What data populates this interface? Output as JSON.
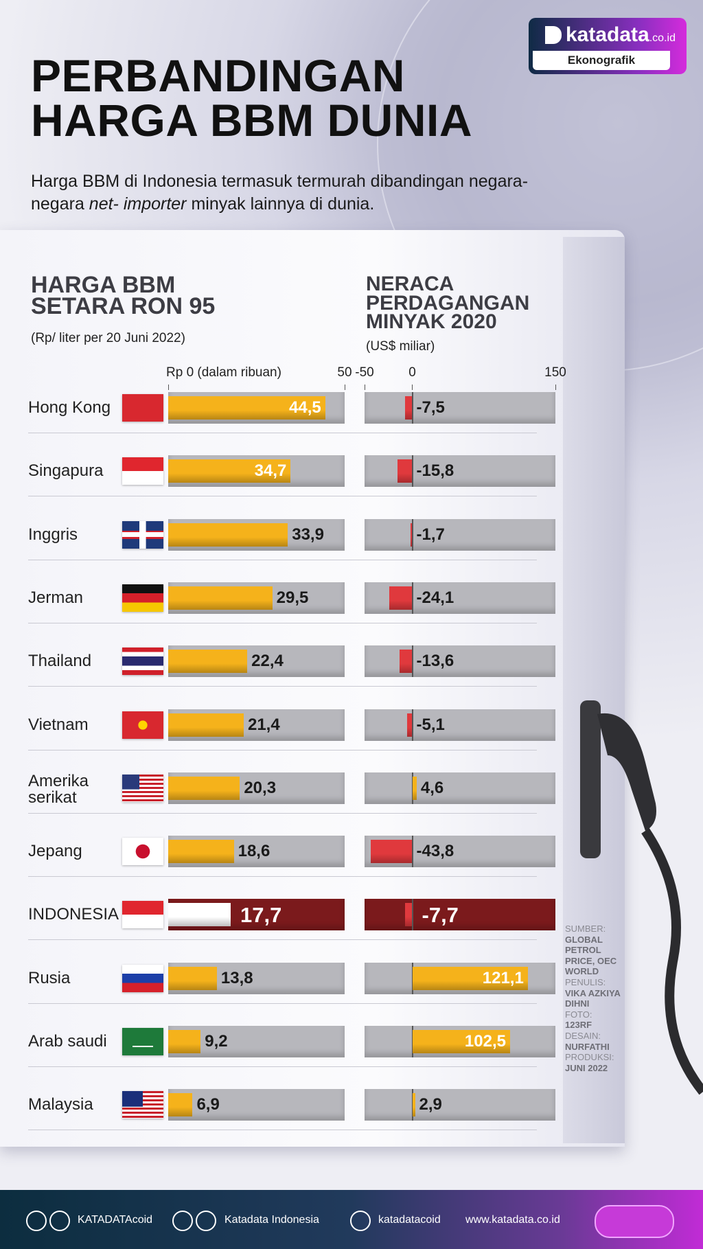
{
  "header": {
    "title": "PERBANDINGAN HARGA BBM DUNIA",
    "subtitle": [
      "Harga BBM di Indonesia termasuk termurah dibandingan negara-negara ",
      "net- importer",
      " minyak lainnya di dunia."
    ]
  },
  "logo": {
    "name": "katadata",
    "domain": ".co.id",
    "tag": "Ekonografik"
  },
  "chart_data": [
    {
      "type": "hbar",
      "title": "HARGA BBM SETARA RON 95",
      "subtitle": "(Rp/ liter per 20 Juni 2022)",
      "categories": [
        "Hong Kong",
        "Singapura",
        "Inggris",
        "Jerman",
        "Thailand",
        "Vietnam",
        "Amerika serikat",
        "Jepang",
        "INDONESIA",
        "Rusia",
        "Arab saudi",
        "Malaysia"
      ],
      "values": [
        44.5,
        34.7,
        33.9,
        29.5,
        22.4,
        21.4,
        20.3,
        18.6,
        17.7,
        13.8,
        9.2,
        6.9
      ],
      "value_labels": [
        "44,5",
        "34,7",
        "33,9",
        "29,5",
        "22,4",
        "21,4",
        "20,3",
        "18,6",
        "17,7",
        "13,8",
        "9,2",
        "6,9"
      ],
      "colors": [
        "#f5b21b",
        "#f5b21b",
        "#f5b21b",
        "#f5b21b",
        "#f5b21b",
        "#f5b21b",
        "#f5b21b",
        "#f5b21b",
        "#ffffff",
        "#f5b21b",
        "#f5b21b",
        "#f5b21b"
      ],
      "track_colors": [
        "#b7b7bc",
        "#b7b7bc",
        "#b7b7bc",
        "#b7b7bc",
        "#b7b7bc",
        "#b7b7bc",
        "#b7b7bc",
        "#b7b7bc",
        "#7b1a1c",
        "#b7b7bc",
        "#b7b7bc",
        "#b7b7bc"
      ],
      "xlim": [
        0,
        50
      ],
      "xticks": [
        {
          "value": 0,
          "label": "Rp 0 (dalam ribuan)"
        },
        50
      ]
    },
    {
      "type": "hbar",
      "title": "NERACA PERDAGANGAN MINYAK 2020",
      "subtitle": "(US$ miliar)",
      "values": [
        -7.5,
        -15.8,
        -1.7,
        -24.1,
        -13.6,
        -5.1,
        4.6,
        -43.8,
        -7.7,
        121.1,
        102.5,
        2.9
      ],
      "value_labels": [
        "-7,5",
        "-15,8",
        "-1,7",
        "-24,1",
        "-13,6",
        "-5,1",
        "4,6",
        "-43,8",
        "-7,7",
        "121,1",
        "102,5",
        "2,9"
      ],
      "colors": [
        "#e0393d",
        "#e0393d",
        "#e0393d",
        "#e0393d",
        "#e0393d",
        "#e0393d",
        "#f5b21b",
        "#e0393d",
        "#e0393d",
        "#f5b21b",
        "#f5b21b",
        "#f5b21b"
      ],
      "track_colors": [
        "#b7b7bc",
        "#b7b7bc",
        "#b7b7bc",
        "#b7b7bc",
        "#b7b7bc",
        "#b7b7bc",
        "#b7b7bc",
        "#b7b7bc",
        "#7b1a1c",
        "#b7b7bc",
        "#b7b7bc",
        "#b7b7bc"
      ],
      "xlim": [
        -50,
        150
      ],
      "xticks": [
        -50,
        0,
        150
      ]
    }
  ],
  "credits": [
    {
      "label": "SUMBER:",
      "value": "GLOBAL PETROL PRICE, OEC WORLD"
    },
    {
      "label": "PENULIS:",
      "value": "VIKA AZKIYA DIHNI"
    },
    {
      "label": "FOTO:",
      "value": "123RF"
    },
    {
      "label": "DESAIN:",
      "value": "NURFATHI"
    },
    {
      "label": "PRODUKSI:",
      "value": "JUNI 2022"
    }
  ],
  "footer": [
    "KATADATAcoid",
    "Katadata Indonesia",
    "katadatacoid",
    "www.katadata.co.id"
  ]
}
